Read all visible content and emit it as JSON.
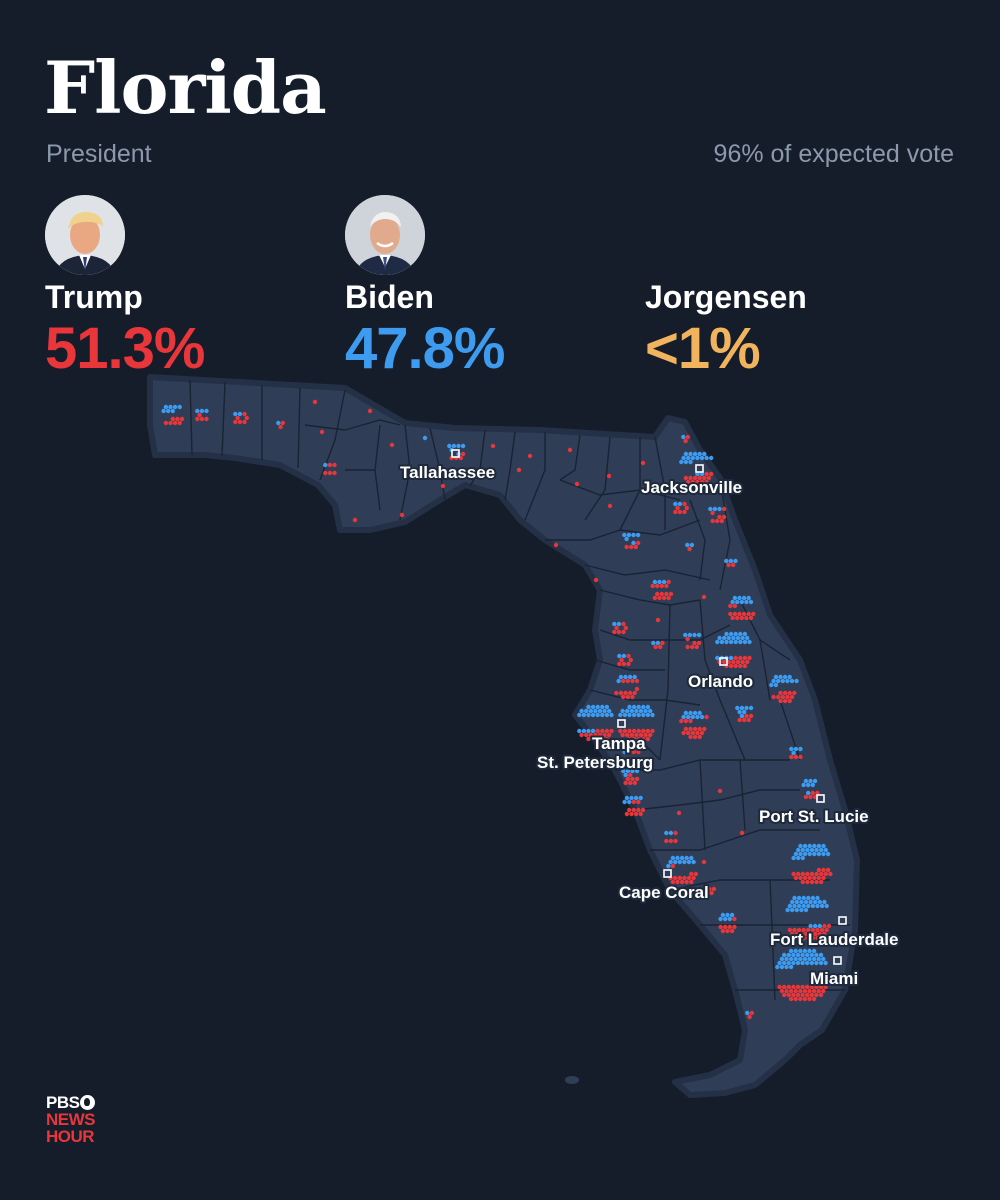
{
  "header": {
    "title": "Florida",
    "race": "President",
    "reporting": "96% of expected vote"
  },
  "candidates": [
    {
      "name": "Trump",
      "pct": "51.3%",
      "color": "#e8363a",
      "photo": "portrait-trump"
    },
    {
      "name": "Biden",
      "pct": "47.8%",
      "color": "#3d9cf0",
      "photo": "portrait-biden"
    },
    {
      "name": "Jorgensen",
      "pct": "<1%",
      "color": "#f2b35e"
    }
  ],
  "colors": {
    "background": "#151d2b",
    "state_fill": "#2f3d57",
    "county_border": "#1a2333",
    "trump": "#e8363a",
    "biden": "#3d9cf0"
  },
  "cities": [
    {
      "name": "Tallahassee"
    },
    {
      "name": "Jacksonville"
    },
    {
      "name": "Orlando"
    },
    {
      "name": "Tampa"
    },
    {
      "name": "St. Petersburg"
    },
    {
      "name": "Port St. Lucie"
    },
    {
      "name": "Cape Coral"
    },
    {
      "name": "Fort Lauderdale"
    },
    {
      "name": "Miami"
    }
  ],
  "logo": {
    "line1": "PBS",
    "line2": "NEWS",
    "line3": "HOUR"
  }
}
